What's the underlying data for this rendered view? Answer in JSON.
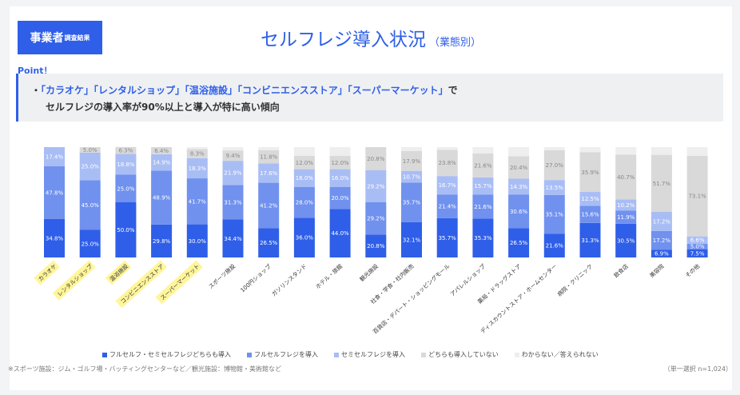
{
  "header": {
    "badge": "事業者",
    "badge_sub": "調査結果",
    "title": "セルフレジ導入状況",
    "title_sub": "（業態別）"
  },
  "point_label": "Point！",
  "callout": {
    "bullet": "・",
    "highlight": "「カラオケ」「レンタルショップ」「温浴施設」「コンビニエンスストア」「スーパーマーケット」",
    "line1_tail": "で",
    "line2": "セルフレジの導入率が90%以上と導入が特に高い傾向"
  },
  "footnote": "※スポーツ施設：ジム・ゴルフ場・バッティングセンターなど／観光施設：博物館・美術館など",
  "n_label": "（単一選択 n=1,024）",
  "colors": {
    "full": "#2f5fe8",
    "fullself": "#7091ee",
    "semi": "#a9bdf5",
    "none": "#d9d9d9",
    "unknown": "#eeeeee",
    "highlight": "#fff59a"
  },
  "chart_data": {
    "type": "bar",
    "stacked": true,
    "categories": [
      "カラオケ",
      "レンタルショップ",
      "温浴施設",
      "コンビニエンスストア",
      "スーパーマーケット",
      "スポーツ施設",
      "100円ショップ",
      "ガソリンスタンド",
      "ホテル・旅館",
      "観光施設",
      "社食・学食・社内販売",
      "百貨店・デパート・ショッピングモール",
      "アパレルショップ",
      "薬局・ドラッグストア",
      "ディスカウントストア・ホームセンター",
      "病院・クリニック",
      "飲食店",
      "美容院",
      "その他"
    ],
    "highlighted": [
      "カラオケ",
      "レンタルショップ",
      "温浴施設",
      "コンビニエンスストア",
      "スーパーマーケット"
    ],
    "series": [
      {
        "name": "フルセルフ・セミセルフレジどちらも導入",
        "values": [
          34.8,
          25.0,
          50.0,
          29.8,
          30.0,
          34.4,
          26.5,
          36.0,
          44.0,
          20.8,
          32.1,
          35.7,
          35.3,
          26.5,
          21.6,
          31.3,
          30.5,
          6.9,
          7.5
        ]
      },
      {
        "name": "フルセルフレジを導入",
        "values": [
          47.8,
          45.0,
          25.0,
          48.9,
          41.7,
          31.3,
          41.2,
          28.0,
          20.0,
          29.2,
          35.7,
          21.4,
          21.6,
          30.6,
          35.1,
          15.6,
          11.9,
          17.2,
          5.0
        ]
      },
      {
        "name": "セミセルフレジを導入",
        "values": [
          17.4,
          25.0,
          18.8,
          14.9,
          18.3,
          21.9,
          17.6,
          16.0,
          16.0,
          29.2,
          10.7,
          16.7,
          15.7,
          14.3,
          13.5,
          12.5,
          10.2,
          17.2,
          6.6
        ]
      },
      {
        "name": "どちらも導入していない",
        "values": [
          0,
          5.0,
          6.3,
          6.4,
          8.3,
          9.4,
          11.8,
          12.0,
          12.0,
          20.8,
          17.9,
          23.8,
          21.6,
          20.4,
          27.0,
          35.9,
          40.7,
          51.7,
          73.1
        ]
      },
      {
        "name": "わからない／答えられない",
        "values": [
          0,
          0,
          0,
          0,
          1.7,
          3.0,
          2.9,
          8.0,
          8.0,
          0,
          3.6,
          2.4,
          5.8,
          8.2,
          2.8,
          4.7,
          6.7,
          7.0,
          7.8
        ]
      }
    ],
    "labels": [
      [
        "34.8%",
        "25.0%",
        "50.0%",
        "29.8%",
        "30.0%",
        "34.4%",
        "26.5%",
        "36.0%",
        "44.0%",
        "20.8%",
        "32.1%",
        "35.7%",
        "35.3%",
        "26.5%",
        "21.6%",
        "31.3%",
        "30.5%",
        "6.9%",
        "7.5%"
      ],
      [
        "47.8%",
        "45.0%",
        "25.0%",
        "48.9%",
        "41.7%",
        "31.3%",
        "41.2%",
        "28.0%",
        "20.0%",
        "29.2%",
        "35.7%",
        "21.4%",
        "21.6%",
        "30.6%",
        "35.1%",
        "15.6%",
        "11.9%",
        "17.2%",
        "5.0%"
      ],
      [
        "17.4%",
        "25.0%",
        "18.8%",
        "14.9%",
        "18.3%",
        "21.9%",
        "17.6%",
        "16.0%",
        "16.0%",
        "29.2%",
        "10.7%",
        "16.7%",
        "15.7%",
        "14.3%",
        "13.5%",
        "12.5%",
        "10.2%",
        "17.2%",
        "6.6%"
      ],
      [
        "",
        "5.0%",
        "6.3%",
        "6.4%",
        "8.3%",
        "9.4%",
        "11.8%",
        "12.0%",
        "12.0%",
        "20.8%",
        "17.9%",
        "23.8%",
        "21.6%",
        "20.4%",
        "27.0%",
        "35.9%",
        "40.7%",
        "51.7%",
        "73.1%"
      ],
      [
        "",
        "",
        "",
        "",
        "",
        "",
        "",
        "",
        "",
        "",
        "",
        "",
        "",
        "",
        "",
        "",
        "",
        "",
        ""
      ]
    ],
    "ylim": [
      0,
      100
    ],
    "legend_position": "bottom"
  }
}
